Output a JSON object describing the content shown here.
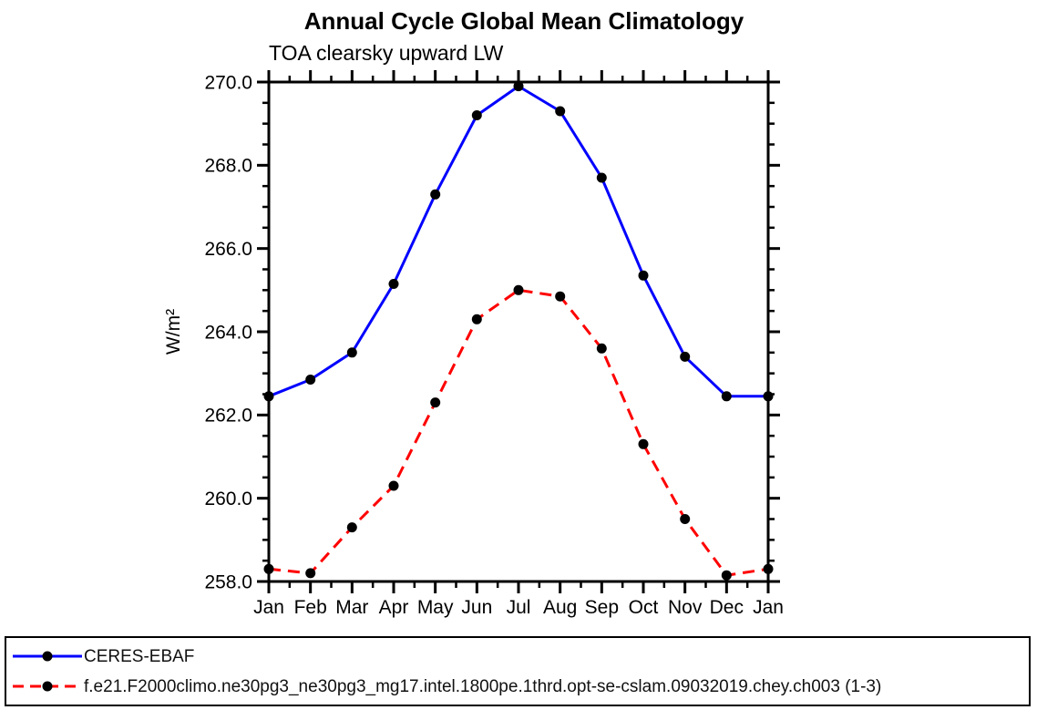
{
  "chart_data": {
    "type": "line",
    "title": "Annual Cycle Global Mean Climatology",
    "subtitle": "TOA clearsky upward LW",
    "ylabel": "W/m²",
    "xlabel": "",
    "categories": [
      "Jan",
      "Feb",
      "Mar",
      "Apr",
      "May",
      "Jun",
      "Jul",
      "Aug",
      "Sep",
      "Oct",
      "Nov",
      "Dec",
      "Jan"
    ],
    "series": [
      {
        "name": "CERES-EBAF",
        "color": "#0000ff",
        "line_style": "solid",
        "marker": "circle",
        "marker_color": "#000000",
        "values": [
          262.45,
          262.85,
          263.5,
          265.15,
          267.3,
          269.2,
          269.9,
          269.3,
          267.7,
          265.35,
          263.4,
          262.45,
          262.45
        ]
      },
      {
        "name": "f.e21.F2000climo.ne30pg3_ne30pg3_mg17.intel.1800pe.1thrd.opt-se-cslam.09032019.chey.ch003 (1-3)",
        "color": "#ff0000",
        "line_style": "dashed",
        "marker": "circle",
        "marker_color": "#000000",
        "values": [
          258.3,
          258.2,
          259.3,
          260.3,
          262.3,
          264.3,
          265.0,
          264.85,
          263.6,
          261.3,
          259.5,
          258.15,
          258.3
        ]
      }
    ],
    "ylim": [
      258.0,
      270.0
    ],
    "yticks": [
      258.0,
      260.0,
      262.0,
      264.0,
      266.0,
      268.0,
      270.0
    ],
    "ytick_minor_step": 0.5,
    "xtick_minor": "half-month",
    "grid": false,
    "legend_position": "bottom",
    "axis_color": "#000000",
    "tick_direction": "out"
  }
}
